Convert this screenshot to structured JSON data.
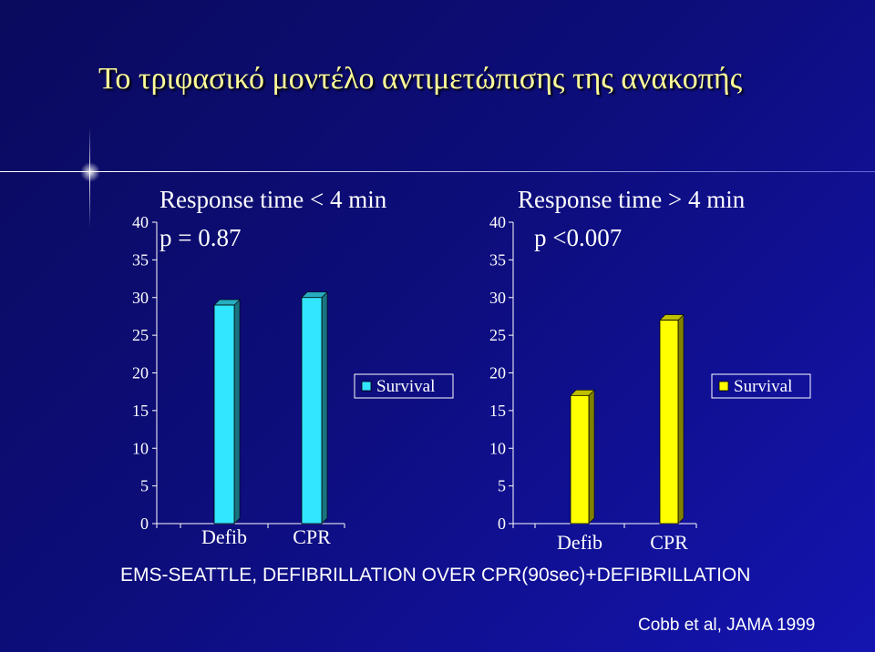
{
  "slide": {
    "title": "Το τριφασικό μοντέλο αντιμετώπισης της ανακοπής",
    "footer": "EMS-SEATTLE, DEFIBRILLATION OVER CPR(90sec)+DEFIBRILLATION",
    "citation": "Cobb et al, JAMA 1999"
  },
  "chart_data": [
    {
      "type": "bar",
      "title": "Response time < 4 min",
      "subtitle": "p = 0.87",
      "categories": [
        "Defib",
        "CPR"
      ],
      "series": [
        {
          "name": "Survival",
          "values": [
            29,
            30
          ],
          "color": "#33e6ff"
        }
      ],
      "yticks": [
        "0",
        "5",
        "10",
        "15",
        "20",
        "25",
        "30",
        "35",
        "40"
      ],
      "ylim": [
        0,
        40
      ],
      "grid": false,
      "legend": "right"
    },
    {
      "type": "bar",
      "title": "Response time > 4 min",
      "subtitle": "p <0.007",
      "categories": [
        "Defib",
        "CPR"
      ],
      "series": [
        {
          "name": "Survival",
          "values": [
            17,
            27
          ],
          "color": "#ffff00"
        }
      ],
      "yticks": [
        "0",
        "5",
        "10",
        "15",
        "20",
        "25",
        "30",
        "35",
        "40"
      ],
      "ylim": [
        0,
        40
      ],
      "grid": false,
      "legend": "right"
    }
  ]
}
